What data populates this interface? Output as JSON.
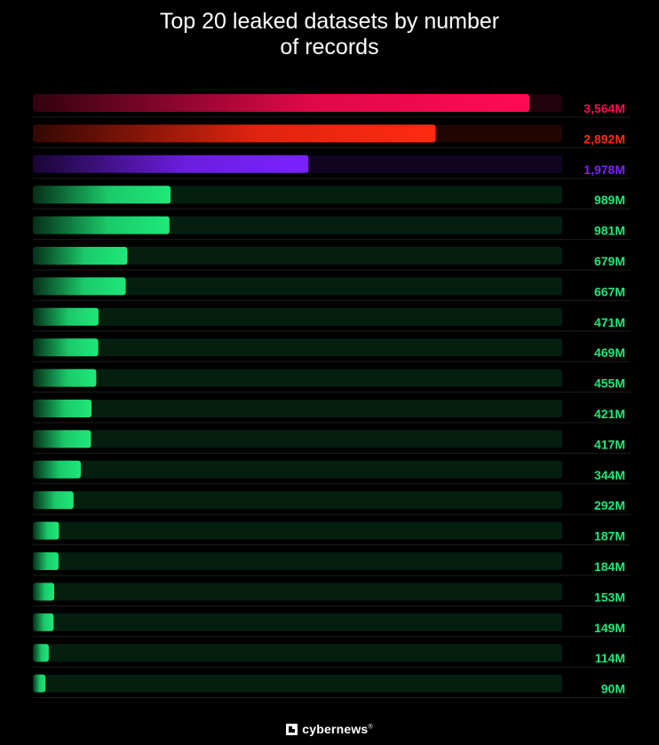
{
  "header": {
    "title_line1": "Top 20 leaked datasets by number",
    "title_line2": "of records"
  },
  "footer": {
    "brand": "cybernews",
    "brand_mark": "®",
    "logo_icon": "cybernews-logo-icon"
  },
  "colors": {
    "background": "#000000",
    "accent_top1": "#ff0a54",
    "accent_top2": "#ff2a12",
    "accent_top3": "#7b22ff",
    "accent_rest": "#1ee87a"
  },
  "chart_data": {
    "type": "bar",
    "orientation": "horizontal",
    "title": "Top 20 leaked datasets by number of records",
    "xlim": [
      0,
      3800
    ],
    "grid": false,
    "legend": "none",
    "series": [
      {
        "values": [
          3564,
          2892,
          1978,
          989,
          981,
          679,
          667,
          471,
          469,
          455,
          421,
          417,
          344,
          292,
          187,
          184,
          153,
          149,
          114,
          90
        ],
        "labels": [
          "3,564M",
          "2,892M",
          "1,978M",
          "989M",
          "981M",
          "679M",
          "667M",
          "471M",
          "469M",
          "455M",
          "421M",
          "417M",
          "344M",
          "292M",
          "187M",
          "184M",
          "153M",
          "149M",
          "114M",
          "90M"
        ]
      }
    ]
  }
}
